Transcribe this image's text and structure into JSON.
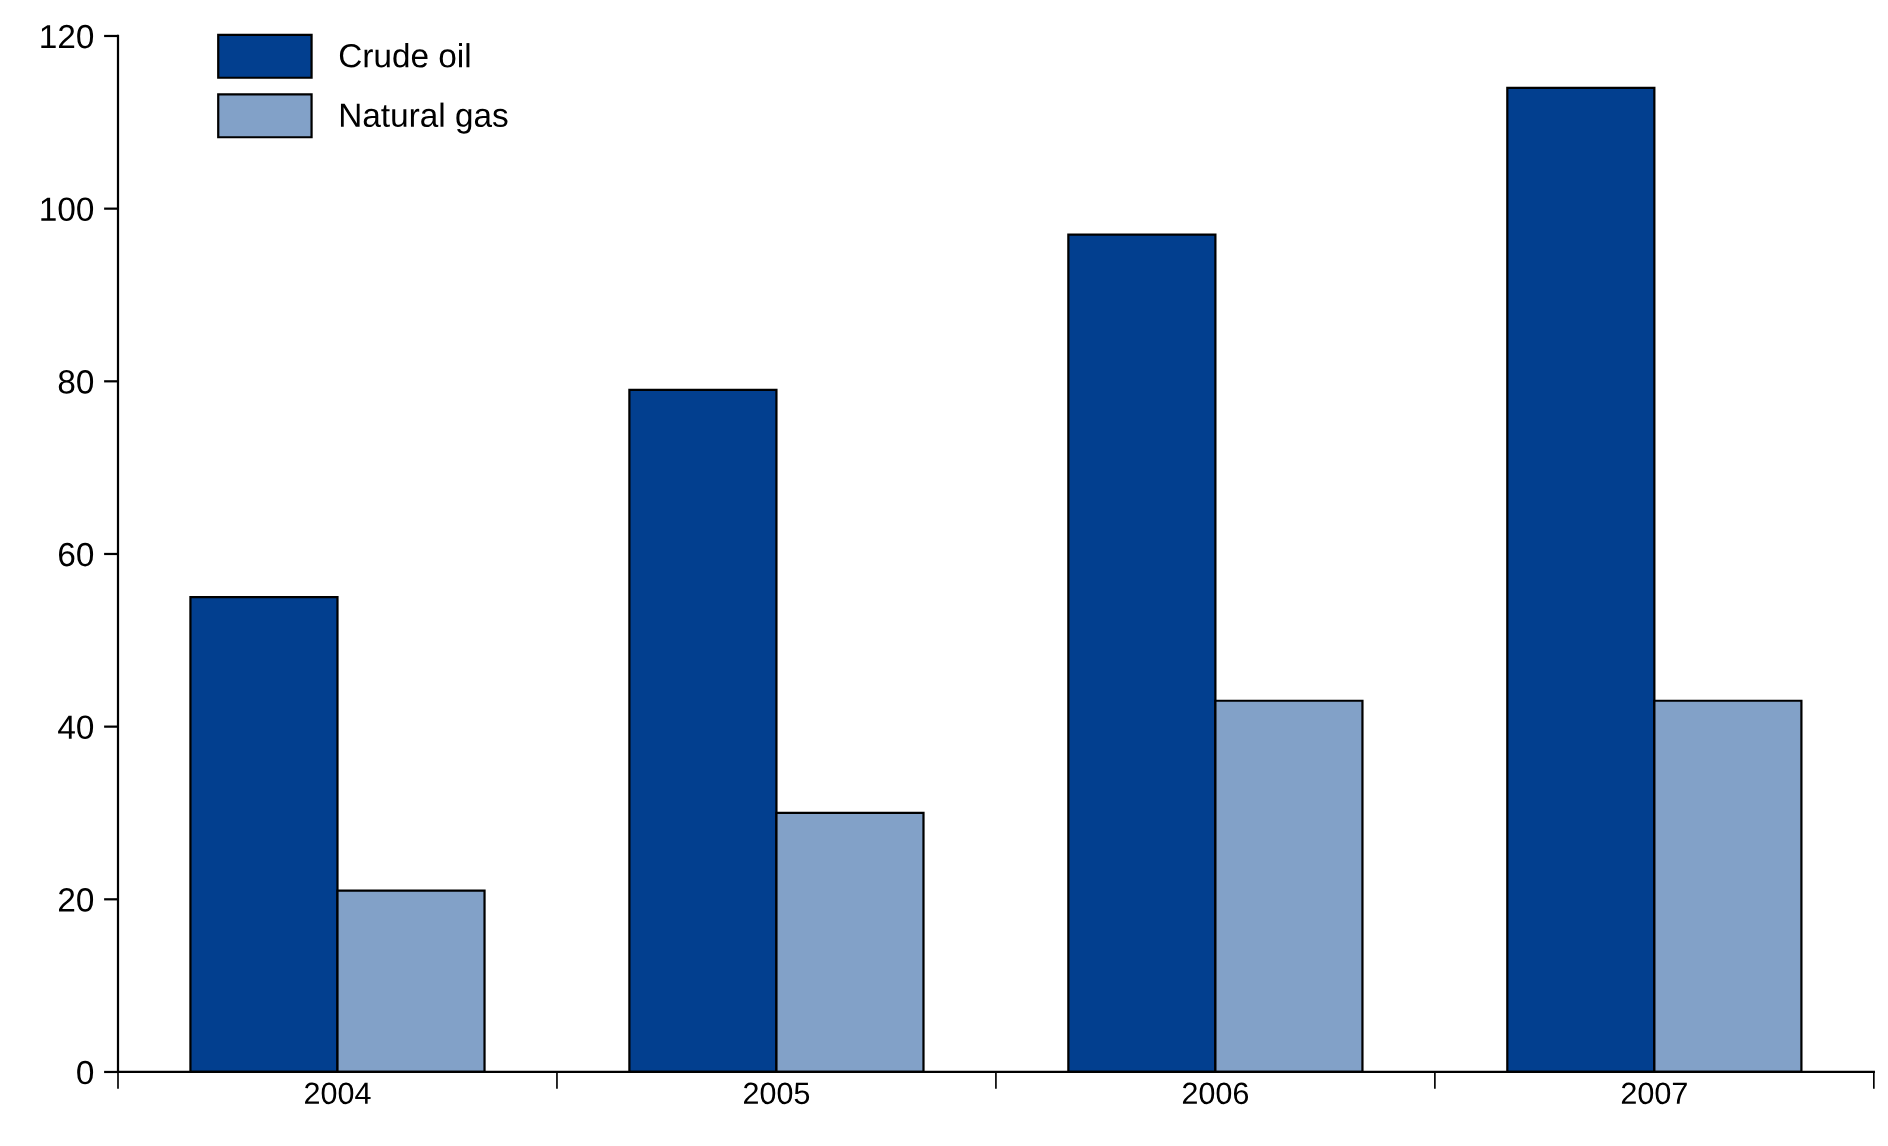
{
  "chart_data": {
    "type": "bar",
    "categories": [
      "2004",
      "2005",
      "2006",
      "2007"
    ],
    "series": [
      {
        "name": "Crude oil",
        "color": "#023f8f",
        "values": [
          55,
          79,
          97,
          114
        ]
      },
      {
        "name": "Natural gas",
        "color": "#82a1c8",
        "values": [
          21,
          30,
          43,
          43
        ]
      }
    ],
    "ylim": [
      0,
      120
    ],
    "yticks": [
      0,
      20,
      40,
      60,
      80,
      100,
      120
    ],
    "grid": false,
    "legend": "top left"
  }
}
